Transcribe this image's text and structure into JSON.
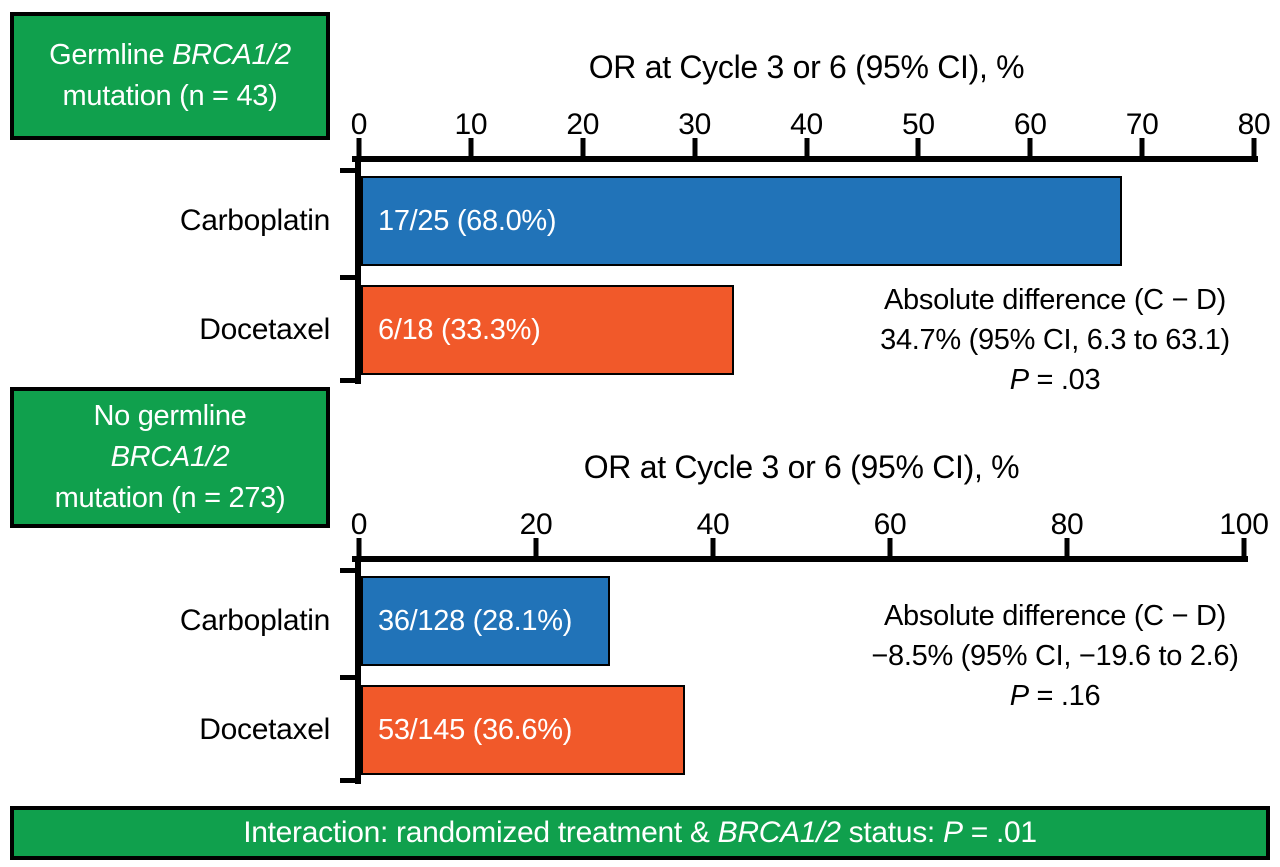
{
  "colors": {
    "green": "#10A04D",
    "blue": "#2173B8",
    "orange": "#F1592A",
    "axis": "#000000",
    "bar_label_text": "#FFFFFF"
  },
  "group_boxes": [
    {
      "line1_prefix": "Germline ",
      "gene": "BRCA1/2",
      "line2": "mutation (n = 43)"
    },
    {
      "line1": "No germline",
      "gene": "BRCA1/2",
      "line3": "mutation (n = 273)"
    }
  ],
  "chart_data": [
    {
      "type": "bar",
      "orientation": "horizontal",
      "group": "Germline BRCA1/2 mutation (n = 43)",
      "title": "OR at Cycle 3 or 6 (95% CI), %",
      "categories": [
        "Carboplatin",
        "Docetaxel"
      ],
      "values": [
        68.0,
        33.3
      ],
      "bar_labels": [
        "17/25 (68.0%)",
        "6/18 (33.3%)"
      ],
      "bar_colors": [
        "#2173B8",
        "#F1592A"
      ],
      "xlim": [
        0,
        80
      ],
      "ticks": [
        0,
        10,
        20,
        30,
        40,
        50,
        60,
        70,
        80
      ],
      "grid": false,
      "annotation": {
        "line1": "Absolute difference (C − D)",
        "line2": "34.7% (95% CI, 6.3 to 63.1)",
        "p_label": "P",
        "p_value": " = .03"
      }
    },
    {
      "type": "bar",
      "orientation": "horizontal",
      "group": "No germline BRCA1/2 mutation (n = 273)",
      "title": "OR at Cycle 3 or 6 (95% CI), %",
      "categories": [
        "Carboplatin",
        "Docetaxel"
      ],
      "values": [
        28.1,
        36.6
      ],
      "bar_labels": [
        "36/128 (28.1%)",
        "53/145 (36.6%)"
      ],
      "bar_colors": [
        "#2173B8",
        "#F1592A"
      ],
      "xlim": [
        0,
        100
      ],
      "ticks": [
        0,
        20,
        40,
        60,
        80,
        100
      ],
      "grid": false,
      "annotation": {
        "line1": "Absolute difference (C − D)",
        "line2": "−8.5% (95% CI, −19.6 to 2.6)",
        "p_label": "P",
        "p_value": " = .16"
      }
    }
  ],
  "banner": {
    "prefix": "Interaction: randomized treatment & ",
    "gene": "BRCA1/2",
    "middle": " status: ",
    "p_label": "P",
    "p_value": " = .01"
  }
}
